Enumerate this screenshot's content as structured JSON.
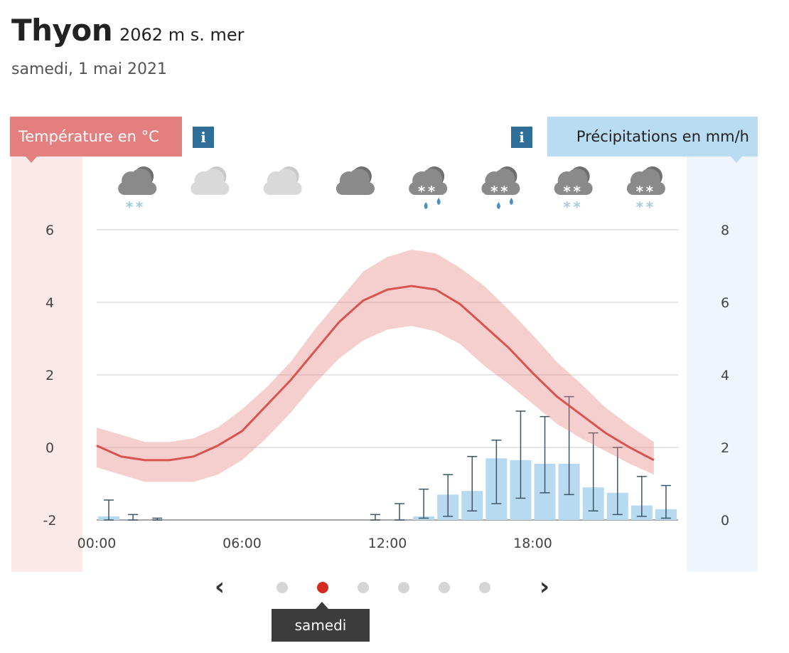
{
  "header": {
    "location": "Thyon",
    "altitude": "2062 m s. mer",
    "date": "samedi, 1 mai 2021"
  },
  "tabs": {
    "temperature": "Température en °C",
    "precipitation": "Précipitations en mm/h",
    "info_symbol": "i"
  },
  "weather_icons": [
    {
      "hour": 2,
      "icon": "cloud-snow-icon",
      "cloud": "dark",
      "precip": "snow-light"
    },
    {
      "hour": 5,
      "icon": "cloud-icon",
      "cloud": "light",
      "precip": "none"
    },
    {
      "hour": 8,
      "icon": "cloud-icon",
      "cloud": "light",
      "precip": "none"
    },
    {
      "hour": 11,
      "icon": "cloud-icon",
      "cloud": "dark",
      "precip": "none"
    },
    {
      "hour": 14,
      "icon": "cloud-sleet-icon",
      "cloud": "dark",
      "precip": "sleet"
    },
    {
      "hour": 17,
      "icon": "cloud-sleet-icon",
      "cloud": "dark",
      "precip": "sleet"
    },
    {
      "hour": 20,
      "icon": "cloud-snow-icon",
      "cloud": "dark",
      "precip": "snow"
    },
    {
      "hour": 23,
      "icon": "cloud-snow-icon",
      "cloud": "dark",
      "precip": "snow"
    }
  ],
  "chart_data": {
    "type": "line+bar",
    "x_ticks": [
      "00:00",
      "06:00",
      "12:00",
      "18:00"
    ],
    "x_range_hours": [
      0,
      24
    ],
    "left_axis": {
      "ticks": [
        "6",
        "4",
        "2",
        "0",
        "-2"
      ],
      "range": [
        -2,
        6
      ]
    },
    "right_axis": {
      "ticks": [
        "8",
        "6",
        "4",
        "2",
        "0"
      ],
      "range": [
        0,
        8
      ]
    },
    "grid": true,
    "temperature": {
      "hours": [
        0,
        1,
        2,
        3,
        4,
        5,
        6,
        7,
        8,
        9,
        10,
        11,
        12,
        13,
        14,
        15,
        16,
        17,
        18,
        19,
        20,
        21,
        22,
        23
      ],
      "mean": [
        0.05,
        -0.25,
        -0.35,
        -0.35,
        -0.25,
        0.05,
        0.45,
        1.15,
        1.85,
        2.65,
        3.45,
        4.05,
        4.35,
        4.45,
        4.35,
        3.95,
        3.35,
        2.75,
        2.05,
        1.4,
        0.9,
        0.4,
        0.0,
        -0.35
      ],
      "upper": [
        0.55,
        0.35,
        0.15,
        0.15,
        0.25,
        0.55,
        1.05,
        1.65,
        2.35,
        3.25,
        4.05,
        4.85,
        5.25,
        5.45,
        5.35,
        4.95,
        4.45,
        3.8,
        3.1,
        2.35,
        1.75,
        1.1,
        0.6,
        0.15
      ],
      "lower": [
        -0.55,
        -0.75,
        -0.95,
        -0.95,
        -0.95,
        -0.75,
        -0.35,
        0.25,
        0.95,
        1.75,
        2.45,
        2.95,
        3.25,
        3.35,
        3.2,
        2.85,
        2.25,
        1.75,
        1.2,
        0.65,
        0.25,
        -0.1,
        -0.45,
        -0.75
      ]
    },
    "precipitation": {
      "hours": [
        0.5,
        1.5,
        2.5,
        3.5,
        4.5,
        5.5,
        6.5,
        7.5,
        8.5,
        9.5,
        10.5,
        11.5,
        12.5,
        13.5,
        14.5,
        15.5,
        16.5,
        17.5,
        18.5,
        19.5,
        20.5,
        21.5,
        22.5,
        23.5
      ],
      "values": [
        0.1,
        0.0,
        0.0,
        0.0,
        0.0,
        0.0,
        0.0,
        0.0,
        0.0,
        0.0,
        0.0,
        0.0,
        0.0,
        0.1,
        0.7,
        0.8,
        1.7,
        1.65,
        1.55,
        1.55,
        0.9,
        0.75,
        0.4,
        0.3
      ],
      "err_high": [
        0.55,
        0.15,
        0.05,
        0.0,
        0.0,
        0.0,
        0.0,
        0.0,
        0.0,
        0.0,
        0.0,
        0.15,
        0.45,
        0.85,
        1.25,
        1.75,
        2.2,
        3.0,
        2.85,
        3.4,
        2.4,
        2.0,
        1.2,
        0.95
      ],
      "err_low": [
        0.0,
        0.0,
        0.0,
        0.0,
        0.0,
        0.0,
        0.0,
        0.0,
        0.0,
        0.0,
        0.0,
        0.0,
        0.0,
        0.05,
        0.1,
        0.25,
        0.45,
        0.6,
        0.75,
        0.7,
        0.25,
        0.15,
        0.1,
        0.05
      ]
    }
  },
  "pager": {
    "dots": 6,
    "active_index": 1,
    "active_label": "samedi"
  }
}
